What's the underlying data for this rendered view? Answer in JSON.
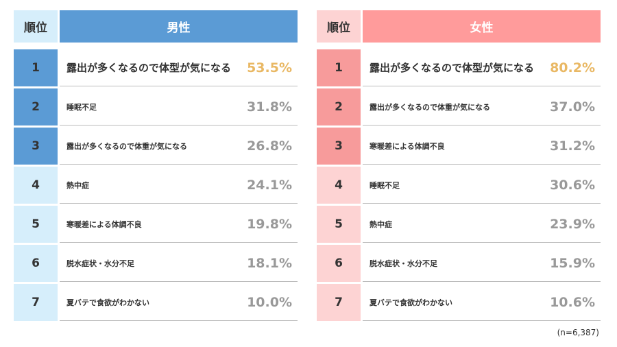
{
  "chart_data": {
    "type": "table",
    "sample_note": "(n=6,387)",
    "rank_header": "順位",
    "colors": {
      "male_header": "#5b9bd5",
      "male_top3": "#5b9bd5",
      "male_rest": "#d6eefb",
      "female_header": "#ff9b9b",
      "female_top3": "#f79b9b",
      "female_rest": "#fdd3d3",
      "top_value": "#e9b864",
      "value": "#999999"
    },
    "tables": [
      {
        "title": "男性",
        "rows": [
          {
            "rank": "1",
            "label": "露出が多くなるので体型が気になる",
            "value": "53.5%"
          },
          {
            "rank": "2",
            "label": "睡眠不足",
            "value": "31.8%"
          },
          {
            "rank": "3",
            "label": "露出が多くなるので体重が気になる",
            "value": "26.8%"
          },
          {
            "rank": "4",
            "label": "熱中症",
            "value": "24.1%"
          },
          {
            "rank": "5",
            "label": "寒暖差による体調不良",
            "value": "19.8%"
          },
          {
            "rank": "6",
            "label": "脱水症状・水分不足",
            "value": "18.1%"
          },
          {
            "rank": "7",
            "label": "夏バテで食欲がわかない",
            "value": "10.0%"
          }
        ]
      },
      {
        "title": "女性",
        "rows": [
          {
            "rank": "1",
            "label": "露出が多くなるので体型が気になる",
            "value": "80.2%"
          },
          {
            "rank": "2",
            "label": "露出が多くなるので体重が気になる",
            "value": "37.0%"
          },
          {
            "rank": "3",
            "label": "寒暖差による体調不良",
            "value": "31.2%"
          },
          {
            "rank": "4",
            "label": "睡眠不足",
            "value": "30.6%"
          },
          {
            "rank": "5",
            "label": "熱中症",
            "value": "23.9%"
          },
          {
            "rank": "6",
            "label": "脱水症状・水分不足",
            "value": "15.9%"
          },
          {
            "rank": "7",
            "label": "夏バテで食欲がわかない",
            "value": "10.6%"
          }
        ]
      }
    ]
  }
}
